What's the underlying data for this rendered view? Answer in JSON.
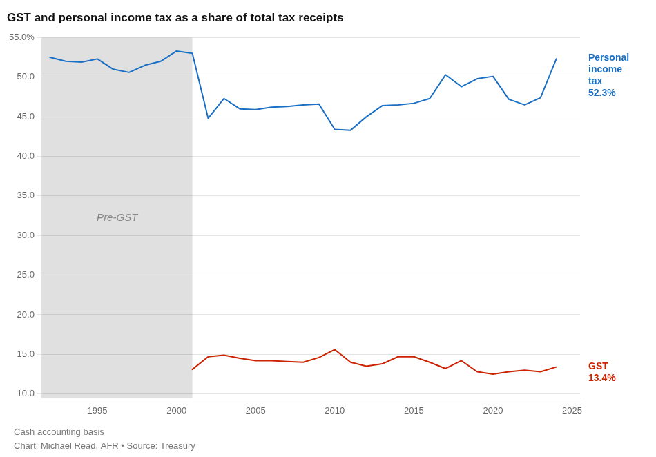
{
  "chart_data": {
    "type": "line",
    "title": "GST and personal income tax as a share of total tax receipts",
    "footnotes": [
      "Cash accounting basis",
      "Chart: Michael Read, AFR • Source: Treasury"
    ],
    "shaded_region": {
      "label": "Pre-GST",
      "start": 1991.5,
      "end": 2001,
      "color": "#e0e0e0"
    },
    "xlim": [
      1991.5,
      2025.5
    ],
    "xticks": [
      1995,
      2000,
      2005,
      2010,
      2015,
      2020,
      2025
    ],
    "ylim": [
      9.5,
      55.0
    ],
    "yticks": [
      {
        "value": 10.0,
        "label": "10.0"
      },
      {
        "value": 15.0,
        "label": "15.0"
      },
      {
        "value": 20.0,
        "label": "20.0"
      },
      {
        "value": 25.0,
        "label": "25.0"
      },
      {
        "value": 30.0,
        "label": "30.0"
      },
      {
        "value": 35.0,
        "label": "35.0"
      },
      {
        "value": 40.0,
        "label": "40.0"
      },
      {
        "value": 45.0,
        "label": "45.0"
      },
      {
        "value": 50.0,
        "label": "50.0"
      },
      {
        "value": 55.0,
        "label": "55.0%"
      }
    ],
    "grid": "y",
    "series": [
      {
        "label_lines": [
          "Personal",
          "income",
          "tax"
        ],
        "end_label": "52.3%",
        "color": "#1a6fc4",
        "x": [
          1992,
          1993,
          1994,
          1995,
          1996,
          1997,
          1998,
          1999,
          2000,
          2001,
          2002,
          2003,
          2004,
          2005,
          2006,
          2007,
          2008,
          2009,
          2010,
          2011,
          2012,
          2013,
          2014,
          2015,
          2016,
          2017,
          2018,
          2019,
          2020,
          2021,
          2022,
          2023,
          2024
        ],
        "values": [
          52.5,
          52.0,
          51.9,
          52.3,
          51.0,
          50.6,
          51.5,
          52.0,
          53.3,
          53.0,
          44.8,
          47.3,
          46.0,
          45.9,
          46.2,
          46.3,
          46.5,
          46.6,
          43.4,
          43.3,
          45.0,
          46.4,
          46.5,
          46.7,
          47.3,
          50.3,
          48.8,
          49.8,
          50.1,
          47.2,
          46.5,
          47.4,
          52.3
        ]
      },
      {
        "label_lines": [
          "GST"
        ],
        "end_label": "13.4%",
        "color": "#cc2200",
        "x": [
          2001,
          2002,
          2003,
          2004,
          2005,
          2006,
          2007,
          2008,
          2009,
          2010,
          2011,
          2012,
          2013,
          2014,
          2015,
          2016,
          2017,
          2018,
          2019,
          2020,
          2021,
          2022,
          2023,
          2024
        ],
        "values": [
          13.1,
          14.7,
          14.9,
          14.5,
          14.2,
          14.2,
          14.1,
          14.0,
          14.6,
          15.6,
          14.0,
          13.5,
          13.8,
          14.7,
          14.7,
          14.0,
          13.2,
          14.2,
          12.8,
          12.5,
          12.8,
          13.0,
          12.8,
          13.4
        ]
      }
    ]
  }
}
